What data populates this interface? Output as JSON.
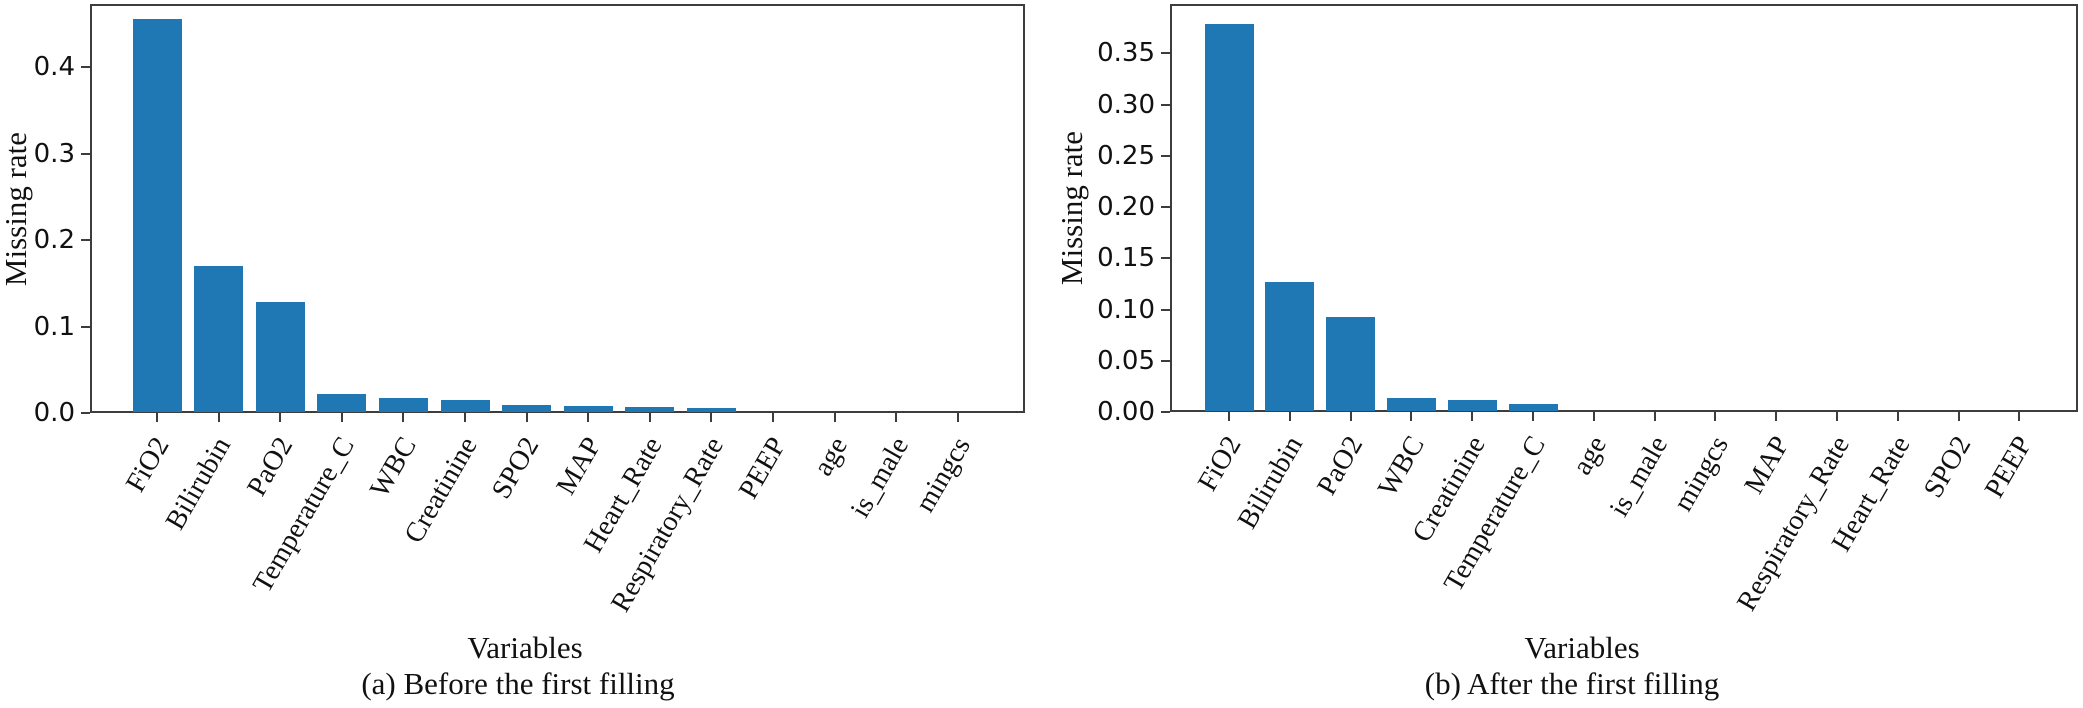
{
  "figure": {
    "background": "#ffffff",
    "bar_color": "#1f77b4"
  },
  "chart_data": [
    {
      "type": "bar",
      "caption": "(a) Before the first filling",
      "xlabel": "Variables",
      "ylabel": "Missing rate",
      "categories": [
        "FiO2",
        "Bilirubin",
        "PaO2",
        "Temperature_C",
        "WBC",
        "Creatinine",
        "SPO2",
        "MAP",
        "Heart_Rate",
        "Respiratory_Rate",
        "PEEP",
        "age",
        "is_male",
        "mingcs"
      ],
      "values": [
        0.454,
        0.169,
        0.127,
        0.021,
        0.016,
        0.014,
        0.008,
        0.007,
        0.006,
        0.005,
        0.0,
        0.0,
        0.0,
        0.0
      ],
      "bar_color": "#1f77b4",
      "ylim": [
        0,
        0.473
      ],
      "yticks": [
        0.0,
        0.1,
        0.2,
        0.3,
        0.4
      ],
      "ytick_labels": [
        "0.0",
        "0.1",
        "0.2",
        "0.3",
        "0.4"
      ],
      "grid": false,
      "legend": "none"
    },
    {
      "type": "bar",
      "caption": "(b) After the first filling",
      "xlabel": "Variables",
      "ylabel": "Missing rate",
      "categories": [
        "FiO2",
        "Bilirubin",
        "PaO2",
        "WBC",
        "Creatinine",
        "Temperature_C",
        "age",
        "is_male",
        "mingcs",
        "MAP",
        "Respiratory_Rate",
        "Heart_Rate",
        "SPO2",
        "PEEP"
      ],
      "values": [
        0.378,
        0.126,
        0.092,
        0.013,
        0.011,
        0.007,
        0.0,
        0.0,
        0.0,
        0.0,
        0.0,
        0.0,
        0.0,
        0.0
      ],
      "bar_color": "#1f77b4",
      "ylim": [
        0,
        0.398
      ],
      "yticks": [
        0.0,
        0.05,
        0.1,
        0.15,
        0.2,
        0.25,
        0.3,
        0.35
      ],
      "ytick_labels": [
        "0.00",
        "0.05",
        "0.10",
        "0.15",
        "0.20",
        "0.25",
        "0.30",
        "0.35"
      ],
      "grid": false,
      "legend": "none"
    }
  ]
}
